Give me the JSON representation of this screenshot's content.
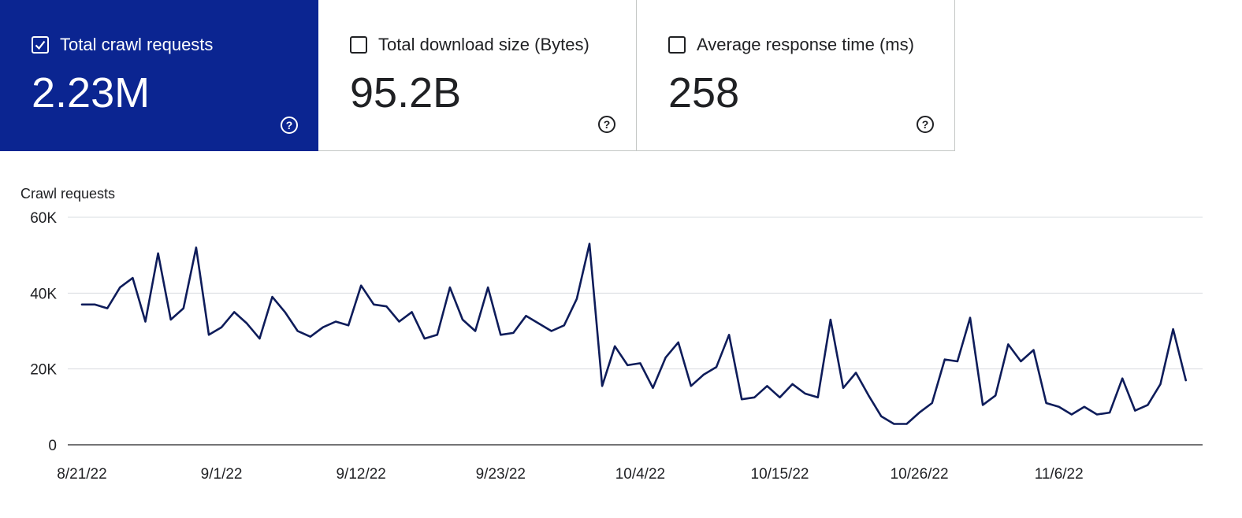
{
  "colors": {
    "accent": "#0b2591",
    "line": "#0e1c5a",
    "grid": "#dadce0",
    "text": "#202124",
    "on_accent": "#ffffff"
  },
  "metrics": [
    {
      "label": "Total crawl requests",
      "value": "2.23M",
      "checked": true,
      "help_icon": "question-circle-icon"
    },
    {
      "label": "Total download size (Bytes)",
      "value": "95.2B",
      "checked": false,
      "help_icon": "question-circle-icon"
    },
    {
      "label": "Average response time (ms)",
      "value": "258",
      "checked": false,
      "help_icon": "question-circle-icon"
    }
  ],
  "chart_data": {
    "type": "line",
    "title": "Crawl requests",
    "xlabel": "",
    "ylabel": "",
    "ylim": [
      0,
      60000
    ],
    "y_ticks": [
      0,
      20000,
      40000,
      60000
    ],
    "y_tick_labels": [
      "0",
      "20K",
      "40K",
      "60K"
    ],
    "x_tick_labels": [
      "8/21/22",
      "9/1/22",
      "9/12/22",
      "9/23/22",
      "10/4/22",
      "10/15/22",
      "10/26/22",
      "11/6/22"
    ],
    "x_start": "8/21/22",
    "grid": true,
    "legend": "none",
    "series": [
      {
        "values": [
          37000,
          37000,
          36000,
          41500,
          44000,
          32500,
          50500,
          33000,
          36000,
          52000,
          29000,
          31000,
          35000,
          32000,
          28000,
          39000,
          35000,
          30000,
          28500,
          31000,
          32500,
          31500,
          42000,
          37000,
          36500,
          32500,
          35000,
          28000,
          29000,
          41500,
          33000,
          30000,
          41500,
          29000,
          29500,
          34000,
          32000,
          30000,
          31500,
          38500,
          53000,
          15500,
          26000,
          21000,
          21500,
          15000,
          23000,
          27000,
          15500,
          18500,
          20500,
          29000,
          12000,
          12500,
          15500,
          12500,
          16000,
          13500,
          12500,
          33000,
          15000,
          19000,
          13000,
          7500,
          5500,
          5500,
          8500,
          11000,
          22500,
          22000,
          33500,
          10500,
          13000,
          26500,
          22000,
          25000,
          11000,
          10000,
          8000,
          10000,
          8000,
          8500,
          17500,
          9000,
          10500,
          16000,
          30500,
          17000
        ]
      }
    ]
  }
}
